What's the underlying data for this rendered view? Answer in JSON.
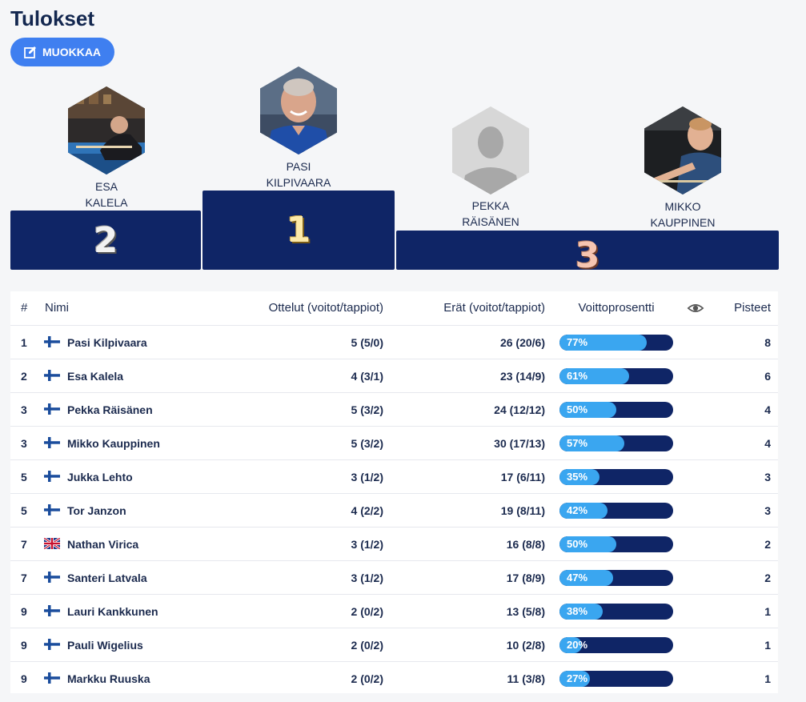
{
  "page": {
    "title": "Tulokset",
    "edit_label": "MUOKKAA"
  },
  "podium": {
    "first": {
      "place": "1",
      "first_name": "PASI",
      "last_name": "KILPIVAARA"
    },
    "second": {
      "place": "2",
      "first_name": "ESA",
      "last_name": "KALELA"
    },
    "third_a": {
      "first_name": "PEKKA",
      "last_name": "RÄISÄNEN"
    },
    "third_b": {
      "first_name": "MIKKO",
      "last_name": "KAUPPINEN"
    },
    "third_place": "3"
  },
  "table": {
    "headers": {
      "rank": "#",
      "name": "Nimi",
      "games": "Ottelut (voitot/tappiot)",
      "frames": "Erät (voitot/tappiot)",
      "pct": "Voittoprosentti",
      "points": "Pisteet"
    },
    "rows": [
      {
        "rank": "1",
        "flag": "fi",
        "name": "Pasi Kilpivaara",
        "games": "5 (5/0)",
        "frames": "26 (20/6)",
        "pct": 77,
        "pct_label": "77%",
        "points": "8"
      },
      {
        "rank": "2",
        "flag": "fi",
        "name": "Esa Kalela",
        "games": "4 (3/1)",
        "frames": "23 (14/9)",
        "pct": 61,
        "pct_label": "61%",
        "points": "6"
      },
      {
        "rank": "3",
        "flag": "fi",
        "name": "Pekka Räisänen",
        "games": "5 (3/2)",
        "frames": "24 (12/12)",
        "pct": 50,
        "pct_label": "50%",
        "points": "4"
      },
      {
        "rank": "3",
        "flag": "fi",
        "name": "Mikko Kauppinen",
        "games": "5 (3/2)",
        "frames": "30 (17/13)",
        "pct": 57,
        "pct_label": "57%",
        "points": "4"
      },
      {
        "rank": "5",
        "flag": "fi",
        "name": "Jukka Lehto",
        "games": "3 (1/2)",
        "frames": "17 (6/11)",
        "pct": 35,
        "pct_label": "35%",
        "points": "3"
      },
      {
        "rank": "5",
        "flag": "fi",
        "name": "Tor Janzon",
        "games": "4 (2/2)",
        "frames": "19 (8/11)",
        "pct": 42,
        "pct_label": "42%",
        "points": "3"
      },
      {
        "rank": "7",
        "flag": "gb",
        "name": "Nathan Virica",
        "games": "3 (1/2)",
        "frames": "16 (8/8)",
        "pct": 50,
        "pct_label": "50%",
        "points": "2"
      },
      {
        "rank": "7",
        "flag": "fi",
        "name": "Santeri Latvala",
        "games": "3 (1/2)",
        "frames": "17 (8/9)",
        "pct": 47,
        "pct_label": "47%",
        "points": "2"
      },
      {
        "rank": "9",
        "flag": "fi",
        "name": "Lauri Kankkunen",
        "games": "2 (0/2)",
        "frames": "13 (5/8)",
        "pct": 38,
        "pct_label": "38%",
        "points": "1"
      },
      {
        "rank": "9",
        "flag": "fi",
        "name": "Pauli Wigelius",
        "games": "2 (0/2)",
        "frames": "10 (2/8)",
        "pct": 20,
        "pct_label": "20%",
        "points": "1"
      },
      {
        "rank": "9",
        "flag": "fi",
        "name": "Markku Ruuska",
        "games": "2 (0/2)",
        "frames": "11 (3/8)",
        "pct": 27,
        "pct_label": "27%",
        "points": "1"
      }
    ]
  },
  "colors": {
    "navy": "#0f2566",
    "accent": "#3f7ff0",
    "bar_fill": "#3aa6f0"
  }
}
